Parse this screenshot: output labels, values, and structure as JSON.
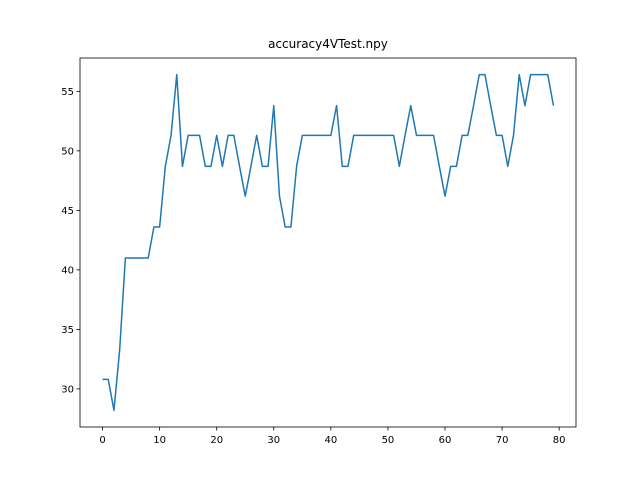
{
  "chart_data": {
    "type": "line",
    "title": "accuracy4VTest.npy",
    "xlabel": "",
    "ylabel": "",
    "xlim": [
      -3.95,
      82.95
    ],
    "ylim": [
      26.8,
      57.8
    ],
    "xticks": [
      0,
      10,
      20,
      30,
      40,
      50,
      60,
      70,
      80
    ],
    "yticks": [
      30,
      35,
      40,
      45,
      50,
      55
    ],
    "grid": false,
    "line_color": "#1f77b4",
    "x": [
      0,
      1,
      2,
      3,
      4,
      5,
      6,
      7,
      8,
      9,
      10,
      11,
      12,
      13,
      14,
      15,
      16,
      17,
      18,
      19,
      20,
      21,
      22,
      23,
      24,
      25,
      26,
      27,
      28,
      29,
      30,
      31,
      32,
      33,
      34,
      35,
      36,
      37,
      38,
      39,
      40,
      41,
      42,
      43,
      44,
      45,
      46,
      47,
      48,
      49,
      50,
      51,
      52,
      53,
      54,
      55,
      56,
      57,
      58,
      59,
      60,
      61,
      62,
      63,
      64,
      65,
      66,
      67,
      68,
      69,
      70,
      71,
      72,
      73,
      74,
      75,
      76,
      77,
      78,
      79
    ],
    "values": [
      30.8,
      30.8,
      28.2,
      33.3,
      41.0,
      41.0,
      41.0,
      41.0,
      41.0,
      43.6,
      43.6,
      48.7,
      51.3,
      56.4,
      48.7,
      51.3,
      51.3,
      51.3,
      48.7,
      48.7,
      51.3,
      48.7,
      51.3,
      51.3,
      48.7,
      46.2,
      48.7,
      51.3,
      48.7,
      48.7,
      53.8,
      46.2,
      43.6,
      43.6,
      48.7,
      51.3,
      51.3,
      51.3,
      51.3,
      51.3,
      51.3,
      53.8,
      48.7,
      48.7,
      51.3,
      51.3,
      51.3,
      51.3,
      51.3,
      51.3,
      51.3,
      51.3,
      48.7,
      51.3,
      53.8,
      51.3,
      51.3,
      51.3,
      51.3,
      48.7,
      46.2,
      48.7,
      48.7,
      51.3,
      51.3,
      53.8,
      56.4,
      56.4,
      53.8,
      51.3,
      51.3,
      48.7,
      51.3,
      56.4,
      53.8,
      56.4,
      56.4,
      56.4,
      56.4,
      53.8
    ]
  }
}
